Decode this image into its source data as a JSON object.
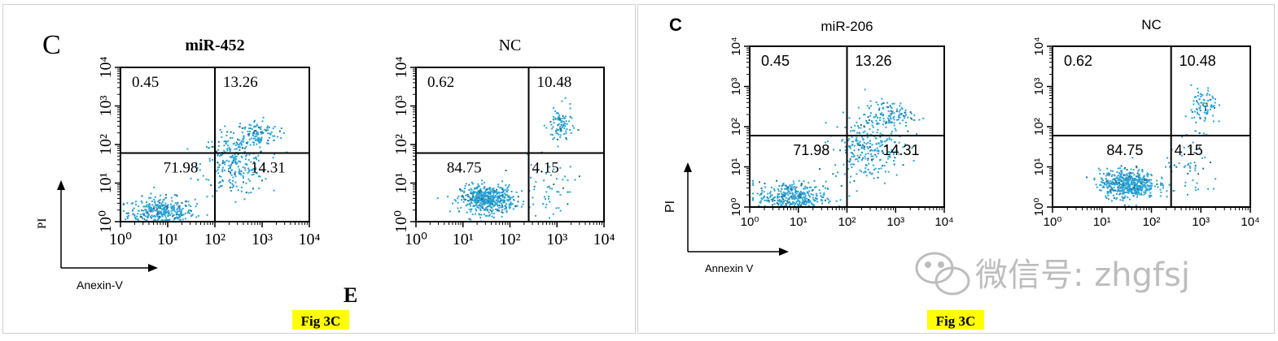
{
  "colors": {
    "dot": "#29a3d6",
    "dot_dark": "#1f6f8f",
    "caption_bg": "#ffff00",
    "axis": "#000000",
    "watermark": "#bdbdbd"
  },
  "left_figure": {
    "panel_letter": "C",
    "caption": "Fig 3C",
    "axis_ylabel": "PI",
    "axis_xlabel": "Anexin-V",
    "stray_letter": "E"
  },
  "right_figure": {
    "panel_letter": "C",
    "caption": "Fig 3C",
    "axis_ylabel": "PI",
    "axis_xlabel": "Annexin V"
  },
  "watermark": {
    "icon": "wechat-icon",
    "text": "微信号: zhgfsj"
  },
  "chart_data": [
    {
      "type": "scatter",
      "title": "miR-452",
      "xlabel": "Anexin-V",
      "ylabel": "PI",
      "xscale": "log",
      "yscale": "log",
      "xlim": [
        1,
        10000
      ],
      "ylim": [
        1,
        10000
      ],
      "x_ticks": [
        "10⁰",
        "10¹",
        "10²",
        "10³",
        "10⁴"
      ],
      "y_ticks": [
        "10⁰",
        "10¹",
        "10²",
        "10³",
        "10⁴"
      ],
      "quadrant_gate": {
        "x": 100,
        "y": 60
      },
      "quadrants": {
        "upper_left": "0.45",
        "upper_right": "13.26",
        "lower_left": "71.98",
        "lower_right": "14.31"
      }
    },
    {
      "type": "scatter",
      "title": "NC",
      "xlabel": "Anexin-V",
      "ylabel": "PI",
      "xscale": "log",
      "yscale": "log",
      "xlim": [
        1,
        10000
      ],
      "ylim": [
        1,
        10000
      ],
      "x_ticks": [
        "10⁰",
        "10¹",
        "10²",
        "10³",
        "10⁴"
      ],
      "y_ticks": [
        "10⁰",
        "10¹",
        "10²",
        "10³",
        "10⁴"
      ],
      "quadrant_gate": {
        "x": 250,
        "y": 60
      },
      "quadrants": {
        "upper_left": "0.62",
        "upper_right": "10.48",
        "lower_left": "84.75",
        "lower_right": "4.15"
      }
    },
    {
      "type": "scatter",
      "title": "miR-206",
      "xlabel": "Annexin V",
      "ylabel": "PI",
      "xscale": "log",
      "yscale": "log",
      "xlim": [
        1,
        10000
      ],
      "ylim": [
        1,
        10000
      ],
      "x_ticks": [
        "10⁰",
        "10¹",
        "10²",
        "10³",
        "10⁴"
      ],
      "y_ticks": [
        "10⁰",
        "10¹",
        "10²",
        "10³",
        "10⁴"
      ],
      "quadrant_gate": {
        "x": 100,
        "y": 60
      },
      "quadrants": {
        "upper_left": "0.45",
        "upper_right": "13.26",
        "lower_left": "71.98",
        "lower_right": "14.31"
      }
    },
    {
      "type": "scatter",
      "title": "NC",
      "xlabel": "Annexin V",
      "ylabel": "PI",
      "xscale": "log",
      "yscale": "log",
      "xlim": [
        1,
        10000
      ],
      "ylim": [
        1,
        10000
      ],
      "x_ticks": [
        "10⁰",
        "10¹",
        "10²",
        "10³",
        "10⁴"
      ],
      "y_ticks": [
        "10⁰",
        "10¹",
        "10²",
        "10³",
        "10⁴"
      ],
      "quadrant_gate": {
        "x": 250,
        "y": 60
      },
      "quadrants": {
        "upper_left": "0.62",
        "upper_right": "10.48",
        "lower_left": "84.75",
        "lower_right": "4.15"
      }
    }
  ]
}
